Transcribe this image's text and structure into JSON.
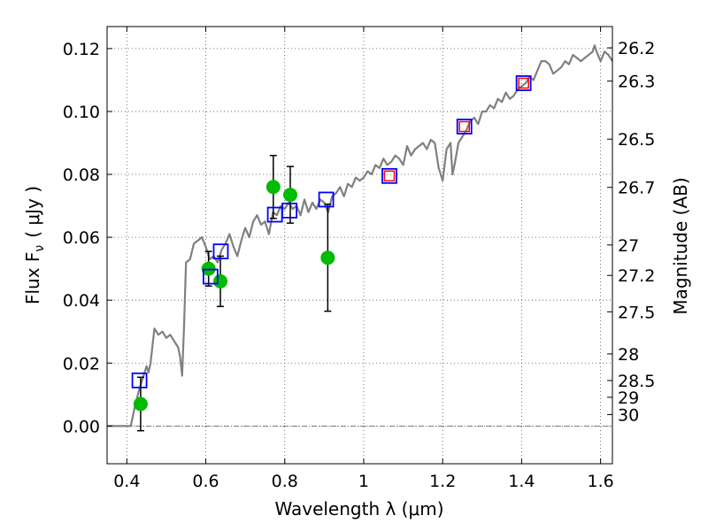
{
  "chart_data": {
    "type": "scatter",
    "xlabel": "Wavelength  λ (μm)",
    "ylabel": "Flux  F",
    "ylabel_sub": "ν",
    "ylabel_unit": "( μJy )",
    "ylabel_right": "Magnitude (AB)",
    "xlim": [
      0.35,
      1.63
    ],
    "ylim": [
      -0.012,
      0.127
    ],
    "xticks": [
      0.4,
      0.6,
      0.8,
      1.0,
      1.2,
      1.4,
      1.6
    ],
    "xtick_labels": [
      "0.4",
      "0.6",
      "0.8",
      "1",
      "1.2",
      "1.4",
      "1.6"
    ],
    "yticks": [
      0.0,
      0.02,
      0.04,
      0.06,
      0.08,
      0.1,
      0.12
    ],
    "ytick_labels": [
      "0.00",
      "0.02",
      "0.04",
      "0.06",
      "0.08",
      "0.10",
      "0.12"
    ],
    "magnitude_ticks": [
      "26.2",
      "26.3",
      "26.5",
      "26.7",
      "27",
      "27.2",
      "27.5",
      "28",
      "28.5",
      "29",
      "30"
    ],
    "grid": true,
    "colors": {
      "model": "#808080",
      "observed": "#00bb00",
      "model_box": "#0000ff",
      "extra_box": "#ff0000",
      "errorbar": "#000000"
    },
    "model_sed": {
      "x": [
        0.35,
        0.385,
        0.4,
        0.41,
        0.42,
        0.43,
        0.44,
        0.45,
        0.455,
        0.46,
        0.47,
        0.48,
        0.49,
        0.5,
        0.51,
        0.52,
        0.53,
        0.535,
        0.54,
        0.545,
        0.55,
        0.56,
        0.57,
        0.58,
        0.59,
        0.6,
        0.61,
        0.62,
        0.63,
        0.64,
        0.65,
        0.66,
        0.67,
        0.68,
        0.69,
        0.7,
        0.71,
        0.72,
        0.73,
        0.74,
        0.75,
        0.76,
        0.77,
        0.78,
        0.79,
        0.8,
        0.81,
        0.82,
        0.83,
        0.84,
        0.85,
        0.86,
        0.87,
        0.88,
        0.89,
        0.9,
        0.91,
        0.92,
        0.93,
        0.94,
        0.95,
        0.96,
        0.97,
        0.98,
        0.99,
        1.0,
        1.01,
        1.02,
        1.03,
        1.04,
        1.05,
        1.06,
        1.07,
        1.08,
        1.09,
        1.1,
        1.11,
        1.12,
        1.13,
        1.14,
        1.15,
        1.16,
        1.17,
        1.18,
        1.19,
        1.2,
        1.21,
        1.22,
        1.225,
        1.23,
        1.24,
        1.25,
        1.26,
        1.27,
        1.28,
        1.29,
        1.3,
        1.31,
        1.32,
        1.33,
        1.34,
        1.35,
        1.36,
        1.37,
        1.38,
        1.39,
        1.4,
        1.41,
        1.42,
        1.43,
        1.44,
        1.45,
        1.46,
        1.47,
        1.48,
        1.49,
        1.5,
        1.51,
        1.52,
        1.53,
        1.54,
        1.55,
        1.56,
        1.57,
        1.58,
        1.585,
        1.59,
        1.6,
        1.61,
        1.62,
        1.63
      ],
      "y": [
        0.0,
        0.0,
        0.0,
        0.0,
        0.006,
        0.011,
        0.015,
        0.019,
        0.017,
        0.02,
        0.031,
        0.029,
        0.03,
        0.028,
        0.029,
        0.027,
        0.025,
        0.022,
        0.016,
        0.032,
        0.052,
        0.053,
        0.058,
        0.059,
        0.06,
        0.057,
        0.053,
        0.054,
        0.052,
        0.056,
        0.058,
        0.061,
        0.057,
        0.054,
        0.059,
        0.063,
        0.06,
        0.065,
        0.067,
        0.064,
        0.065,
        0.061,
        0.068,
        0.067,
        0.07,
        0.069,
        0.071,
        0.069,
        0.07,
        0.067,
        0.072,
        0.068,
        0.071,
        0.069,
        0.072,
        0.071,
        0.068,
        0.073,
        0.074,
        0.076,
        0.073,
        0.077,
        0.076,
        0.079,
        0.078,
        0.079,
        0.081,
        0.08,
        0.083,
        0.082,
        0.085,
        0.083,
        0.084,
        0.086,
        0.085,
        0.083,
        0.089,
        0.086,
        0.088,
        0.089,
        0.09,
        0.088,
        0.091,
        0.09,
        0.082,
        0.078,
        0.088,
        0.09,
        0.08,
        0.083,
        0.09,
        0.092,
        0.094,
        0.097,
        0.098,
        0.096,
        0.1,
        0.1,
        0.102,
        0.101,
        0.104,
        0.103,
        0.106,
        0.104,
        0.105,
        0.107,
        0.108,
        0.109,
        0.111,
        0.11,
        0.113,
        0.116,
        0.116,
        0.115,
        0.112,
        0.113,
        0.114,
        0.116,
        0.115,
        0.118,
        0.117,
        0.116,
        0.117,
        0.118,
        0.119,
        0.121,
        0.119,
        0.116,
        0.119,
        0.118,
        0.116
      ]
    },
    "model_photometry": {
      "x": [
        0.432,
        0.612,
        0.638,
        0.775,
        0.812,
        0.905,
        1.065,
        1.255,
        1.405
      ],
      "y": [
        0.0145,
        0.0475,
        0.0555,
        0.0672,
        0.0685,
        0.072,
        0.0795,
        0.0952,
        0.109
      ]
    },
    "extra_model_points": {
      "x": [
        1.065,
        1.255,
        1.405
      ],
      "y": [
        0.0795,
        0.0952,
        0.109
      ]
    },
    "observed_photometry": {
      "x": [
        0.435,
        0.607,
        0.637,
        0.771,
        0.814,
        0.909
      ],
      "y": [
        0.007,
        0.05,
        0.046,
        0.076,
        0.0735,
        0.0535
      ],
      "y_err": [
        0.0085,
        0.0055,
        0.008,
        0.01,
        0.009,
        0.017
      ]
    }
  }
}
